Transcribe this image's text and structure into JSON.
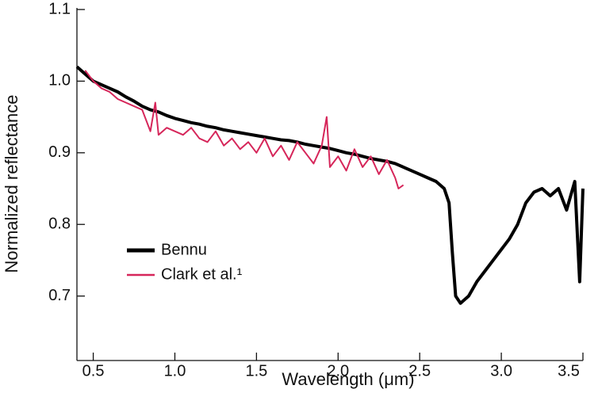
{
  "chart_data": {
    "type": "line",
    "xlabel": "Wavelength (μm)",
    "ylabel": "Normalized reflectance",
    "xlim": [
      0.4,
      3.5
    ],
    "ylim": [
      0.61,
      1.1
    ],
    "xticks": [
      0.5,
      {
        "value": 1,
        "label": "1.0"
      },
      1.5,
      {
        "value": 2,
        "label": "2.0"
      },
      2.5,
      {
        "value": 3,
        "label": "3.0"
      },
      3.5
    ],
    "yticks": [
      0.7,
      0.8,
      0.9,
      {
        "value": 1,
        "label": "1.0"
      },
      1.1
    ],
    "legend": "lower left",
    "series": [
      {
        "name": "Bennu",
        "color": "#000000",
        "x": [
          0.4,
          0.45,
          0.5,
          0.55,
          0.6,
          0.65,
          0.7,
          0.75,
          0.8,
          0.85,
          0.9,
          0.95,
          1.0,
          1.05,
          1.1,
          1.15,
          1.2,
          1.25,
          1.3,
          1.35,
          1.4,
          1.45,
          1.5,
          1.55,
          1.6,
          1.65,
          1.7,
          1.75,
          1.8,
          1.85,
          1.9,
          1.95,
          2.0,
          2.05,
          2.1,
          2.15,
          2.2,
          2.25,
          2.3,
          2.35,
          2.4,
          2.45,
          2.5,
          2.55,
          2.6,
          2.65,
          2.68,
          2.7,
          2.72,
          2.75,
          2.8,
          2.85,
          2.9,
          2.95,
          3.0,
          3.05,
          3.1,
          3.15,
          3.2,
          3.25,
          3.3,
          3.35,
          3.4,
          3.45,
          3.48,
          3.5
        ],
        "values": [
          1.02,
          1.01,
          1.0,
          0.995,
          0.99,
          0.985,
          0.978,
          0.972,
          0.965,
          0.96,
          0.957,
          0.952,
          0.948,
          0.945,
          0.942,
          0.94,
          0.937,
          0.935,
          0.932,
          0.93,
          0.928,
          0.926,
          0.924,
          0.922,
          0.92,
          0.918,
          0.917,
          0.915,
          0.912,
          0.91,
          0.908,
          0.906,
          0.903,
          0.9,
          0.898,
          0.895,
          0.892,
          0.89,
          0.888,
          0.885,
          0.88,
          0.875,
          0.87,
          0.865,
          0.86,
          0.85,
          0.83,
          0.76,
          0.7,
          0.69,
          0.7,
          0.72,
          0.735,
          0.75,
          0.765,
          0.78,
          0.8,
          0.83,
          0.845,
          0.85,
          0.84,
          0.85,
          0.82,
          0.86,
          0.72,
          0.85
        ]
      },
      {
        "name": "Clark et al.¹",
        "color": "#d6265a",
        "x": [
          0.45,
          0.5,
          0.55,
          0.6,
          0.65,
          0.7,
          0.75,
          0.8,
          0.85,
          0.88,
          0.9,
          0.95,
          1.0,
          1.05,
          1.1,
          1.15,
          1.2,
          1.25,
          1.3,
          1.35,
          1.4,
          1.45,
          1.5,
          1.55,
          1.6,
          1.65,
          1.7,
          1.75,
          1.8,
          1.85,
          1.9,
          1.93,
          1.95,
          2.0,
          2.05,
          2.1,
          2.15,
          2.2,
          2.25,
          2.3,
          2.35,
          2.37,
          2.4
        ],
        "values": [
          1.015,
          1.0,
          0.99,
          0.985,
          0.975,
          0.97,
          0.965,
          0.96,
          0.93,
          0.97,
          0.925,
          0.935,
          0.93,
          0.925,
          0.935,
          0.92,
          0.915,
          0.93,
          0.91,
          0.92,
          0.905,
          0.915,
          0.9,
          0.92,
          0.895,
          0.91,
          0.89,
          0.915,
          0.9,
          0.885,
          0.91,
          0.95,
          0.88,
          0.895,
          0.875,
          0.905,
          0.88,
          0.895,
          0.87,
          0.89,
          0.865,
          0.85,
          0.855
        ]
      }
    ]
  }
}
